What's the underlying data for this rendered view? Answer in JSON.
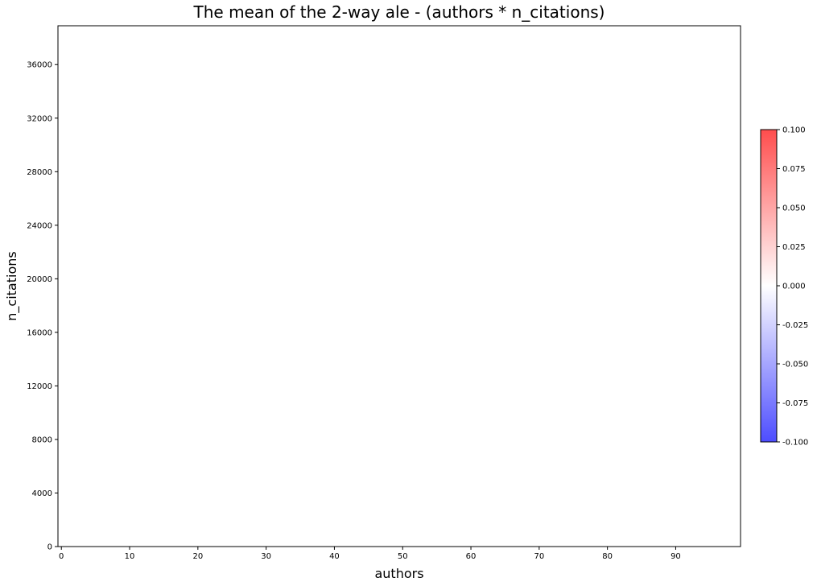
{
  "chart_data": {
    "type": "heatmap",
    "title": "The mean of the 2-way ale - (authors * n_citations)",
    "xlabel": "authors",
    "ylabel": "n_citations",
    "xlim": [
      -0.5,
      99.5
    ],
    "ylim": [
      0,
      38900
    ],
    "x_ticks": [
      0,
      10,
      20,
      30,
      40,
      50,
      60,
      70,
      80,
      90
    ],
    "y_ticks": [
      0,
      4000,
      8000,
      12000,
      16000,
      20000,
      24000,
      28000,
      32000,
      36000
    ],
    "values_note_free": null,
    "z_values": "all approximately 0 (uniform white field)",
    "grid": false,
    "colorbar": {
      "colormap": "bwr",
      "range": [
        -0.1,
        0.1
      ],
      "ticks": [
        "-0.100",
        "-0.075",
        "-0.050",
        "-0.025",
        "0.000",
        "0.025",
        "0.050",
        "0.075",
        "0.100"
      ],
      "colors": {
        "low": "#4d4dff",
        "mid": "#ffffff",
        "high": "#ff4d4d"
      },
      "placement": "right"
    }
  }
}
